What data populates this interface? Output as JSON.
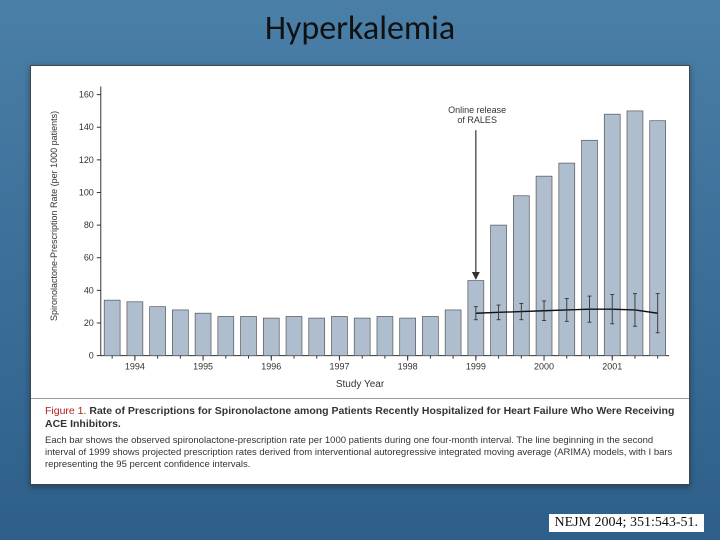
{
  "slide": {
    "title": "Hyperkalemia",
    "citation": "NEJM 2004; 351:543-51.",
    "background_gradient": [
      "#4a7fa8",
      "#2d5f8a"
    ]
  },
  "chart": {
    "type": "bar",
    "xlabel": "Study Year",
    "ylabel": "Spironolactone-Prescription Rate (per 1000 patients)",
    "x_years": [
      1994,
      1995,
      1996,
      1997,
      1998,
      1999,
      2000,
      2001
    ],
    "ylim": [
      0,
      165
    ],
    "yticks": [
      0,
      20,
      40,
      60,
      80,
      100,
      120,
      140,
      160
    ],
    "bar_values": [
      34,
      33,
      30,
      28,
      26,
      24,
      24,
      23,
      24,
      23,
      24,
      23,
      24,
      23,
      24,
      28,
      46,
      80,
      98,
      110,
      118,
      132,
      148,
      150,
      144
    ],
    "bar_color": "#aebecf",
    "bar_edge_color": "#555",
    "axis_color": "#333",
    "background_color": "#ffffff",
    "label_fontsize": 10,
    "tick_fontsize": 9,
    "annotation": {
      "lines": [
        "Online release",
        "of RALES"
      ],
      "arrow_target_bar_index": 16
    },
    "projection": {
      "start_bar_index": 16,
      "points_y": [
        26,
        26.5,
        27,
        27.5,
        28,
        28.5,
        28.5,
        28,
        26
      ],
      "ci_half": [
        4,
        4.5,
        5,
        6,
        7,
        8,
        9,
        10,
        12
      ]
    }
  },
  "caption": {
    "figure_label": "Figure 1.",
    "title_text": "Rate of Prescriptions for Spironolactone among Patients Recently Hospitalized for Heart Failure Who Were Receiving ACE Inhibitors.",
    "body_text": "Each bar shows the observed spironolactone-prescription rate per 1000 patients during one four-month interval. The line beginning in the second interval of 1999 shows projected prescription rates derived from interventional autoregressive integrated moving average (ARIMA) models, with I bars representing the 95 percent confidence intervals."
  }
}
